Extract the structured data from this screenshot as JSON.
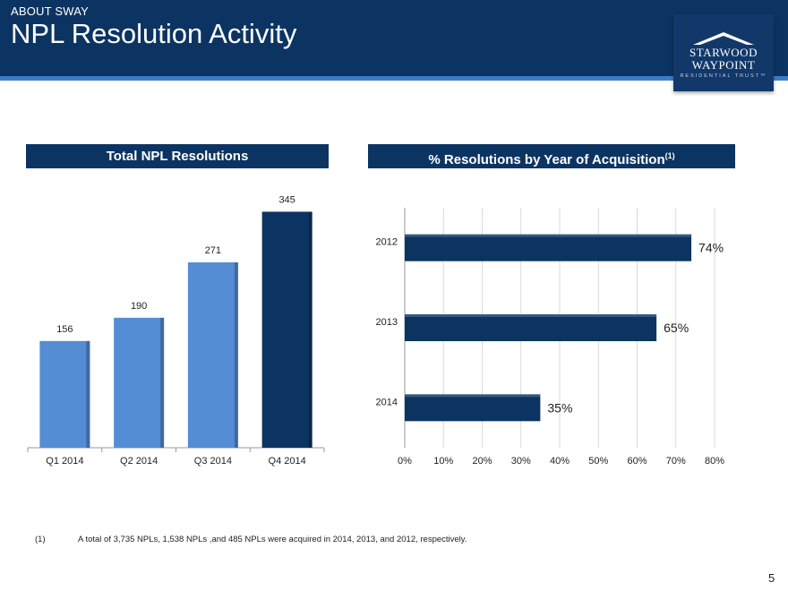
{
  "header": {
    "eyebrow": "ABOUT SWAY",
    "title": "NPL Resolution Activity"
  },
  "logo": {
    "line1": "STARWOOD",
    "line2": "WAYPOINT",
    "line3": "RESIDENTIAL TRUST™"
  },
  "colors": {
    "navy": "#0c3462",
    "accent_stripe": "#3d7cc9",
    "bar_light": "#548dd4",
    "bar_dark": "#0c3462"
  },
  "left_panel": {
    "title": "Total NPL Resolutions"
  },
  "right_panel": {
    "title": "% Resolutions by Year of Acquisition",
    "title_sup": "(1)"
  },
  "chart_data": [
    {
      "type": "bar",
      "title": "Total NPL Resolutions",
      "categories": [
        "Q1 2014",
        "Q2 2014",
        "Q3 2014",
        "Q4 2014"
      ],
      "values": [
        156,
        190,
        271,
        345
      ],
      "value_labels": [
        "156",
        "190",
        "271",
        "345"
      ],
      "bar_colors": [
        "#548dd4",
        "#548dd4",
        "#548dd4",
        "#0c3462"
      ],
      "ylim": [
        0,
        360
      ],
      "grid": false
    },
    {
      "type": "bar",
      "orientation": "horizontal",
      "title": "% Resolutions by Year of Acquisition(1)",
      "categories": [
        "2012",
        "2013",
        "2014"
      ],
      "values": [
        74,
        65,
        35
      ],
      "value_labels": [
        "74%",
        "65%",
        "35%"
      ],
      "xlim": [
        0,
        80
      ],
      "x_ticks": [
        "0%",
        "10%",
        "20%",
        "30%",
        "40%",
        "50%",
        "60%",
        "70%",
        "80%"
      ],
      "grid": true
    }
  ],
  "footnote": {
    "mark": "(1)",
    "text": "A total of 3,735 NPLs, 1,538 NPLs ,and 485 NPLs were acquired in 2014, 2013, and 2012, respectively."
  },
  "page_number": "5"
}
